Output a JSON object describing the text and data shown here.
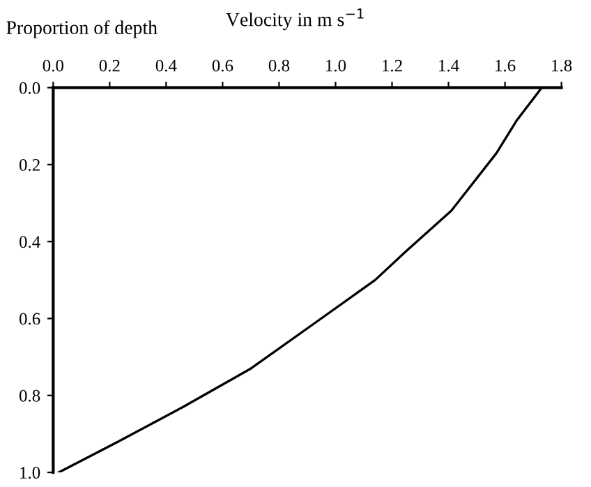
{
  "chart_data": {
    "type": "line",
    "xlabel": "Velocity in m s$^{−1}$",
    "ylabel": "Proportion of depth",
    "series": [
      {
        "color": "#000000",
        "x": [
          1.73,
          1.64,
          1.57,
          1.41,
          1.25,
          1.14,
          0.93,
          0.7,
          0.46,
          0.23,
          0.02
        ],
        "values": [
          0.0,
          0.087,
          0.17,
          0.32,
          0.425,
          0.5,
          0.61,
          0.73,
          0.83,
          0.92,
          1.0
        ]
      }
    ],
    "xlim": [
      0.0,
      1.8
    ],
    "xticks": [
      {
        "value": 0,
        "label": "0.0"
      },
      0.2,
      0.4,
      0.6,
      0.8,
      {
        "value": 1,
        "label": "1.0"
      },
      1.2,
      1.4,
      1.6,
      1.8
    ],
    "ylim": [
      1.0,
      0.0
    ],
    "yticks": [
      {
        "value": 0,
        "label": "0.0"
      },
      0.2,
      0.4,
      0.6,
      0.8,
      {
        "value": 1,
        "label": "1.0"
      }
    ],
    "grid": false,
    "marker": "none",
    "line_style": "solid"
  }
}
